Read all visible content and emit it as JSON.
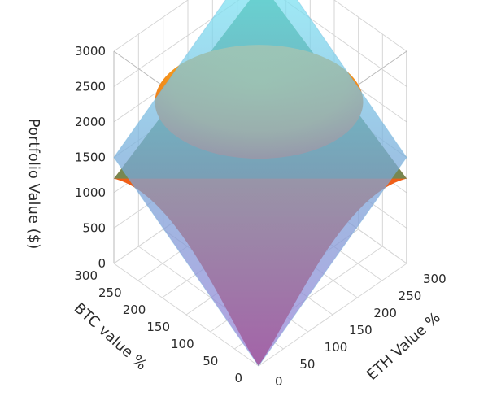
{
  "chart_data": {
    "type": "surface",
    "title": "",
    "axes": {
      "x": {
        "label": "BTC value %",
        "ticks": [
          "0",
          "50",
          "100",
          "150",
          "200",
          "250",
          "300"
        ],
        "range": [
          0,
          300
        ]
      },
      "y": {
        "label": "ETH Value %",
        "ticks": [
          "0",
          "50",
          "100",
          "150",
          "200",
          "250",
          "300"
        ],
        "range": [
          0,
          300
        ]
      },
      "z": {
        "label": "Portfolio Value ($)",
        "ticks": [
          "0",
          "500",
          "1000",
          "1500",
          "2000",
          "2500",
          "3000"
        ],
        "range": [
          0,
          3000
        ]
      }
    },
    "grid": true,
    "series": [
      {
        "kind": "plane",
        "colors": {
          "bottom": "#7aa7d8",
          "top": "#7ff1f8"
        },
        "opacity": 0.75,
        "z_at_corners": {
          "x0_y0": 0,
          "x300_y0": 1500,
          "x0_y300": 1500,
          "x300_y300": 3000
        }
      },
      {
        "kind": "curved",
        "colors": {
          "low": "#d0101a",
          "mid": "#f7a11a",
          "top": "#e8b324",
          "overlay": "#1e9e7a"
        },
        "z_at_corners": {
          "x0_y0": 0,
          "x300_y0": 1200,
          "x0_y300": 1200,
          "x300_y300": 2500
        },
        "plateau": 1550
      }
    ]
  }
}
